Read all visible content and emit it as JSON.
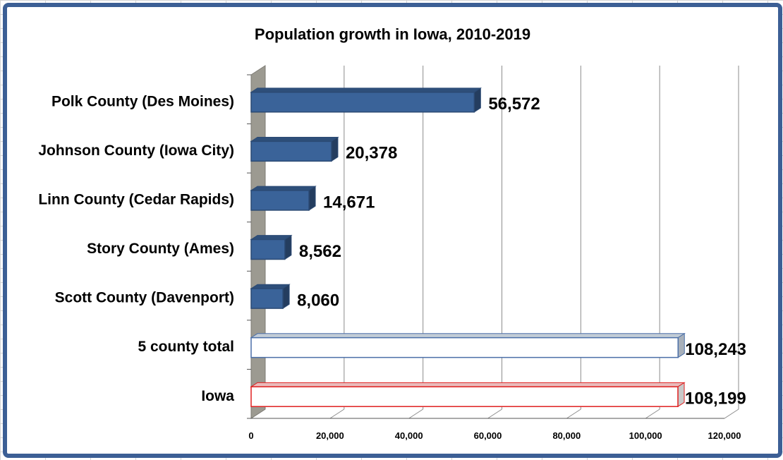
{
  "chart_data": {
    "type": "bar",
    "orientation": "horizontal",
    "style": "3d-clustered-bar",
    "title": "Population growth in Iowa, 2010-2019",
    "xlabel": "",
    "ylabel": "",
    "xlim": [
      0,
      120000
    ],
    "ticks": [
      "0",
      "20,000",
      "40,000",
      "60,000",
      "80,000",
      "100,000",
      "120,000"
    ],
    "categories": [
      "Polk County (Des Moines)",
      "Johnson County (Iowa City)",
      "Linn County (Cedar Rapids)",
      "Story County (Ames)",
      "Scott County (Davenport)",
      "5 county total",
      "Iowa"
    ],
    "values": [
      56572,
      20378,
      14671,
      8562,
      8060,
      108243,
      108199
    ],
    "value_labels": [
      "56,572",
      "20,378",
      "14,671",
      "8,562",
      "8,060",
      "108,243",
      "108,199"
    ],
    "bar_fills": [
      "#3a6399",
      "#3a6399",
      "#3a6399",
      "#3a6399",
      "#3a6399",
      "#ffffff",
      "#ffffff"
    ],
    "bar_outlines": [
      "#2b4a74",
      "#2b4a74",
      "#2b4a74",
      "#2b4a74",
      "#2b4a74",
      "#4b6fa8",
      "#e02020"
    ],
    "grid": true,
    "legend": "none"
  },
  "colors": {
    "frame": "#3c5f95",
    "gridline": "#8c8c8c",
    "side_wall": "#9c9a91"
  }
}
